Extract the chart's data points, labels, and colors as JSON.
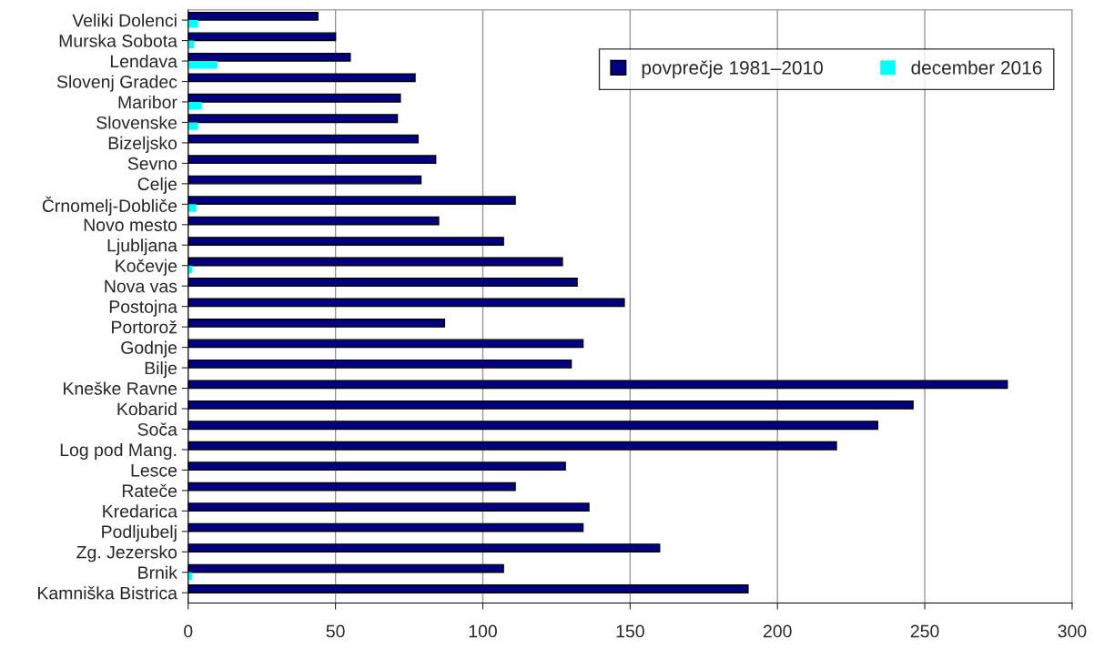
{
  "chart_data": {
    "type": "bar",
    "orientation": "horizontal",
    "categories": [
      "Veliki Dolenci",
      "Murska Sobota",
      "Lendava",
      "Slovenj Gradec",
      "Maribor",
      "Slovenske",
      "Bizeljsko",
      "Sevno",
      "Celje",
      "Črnomelj-Dobliče",
      "Novo mesto",
      "Ljubljana",
      "Kočevje",
      "Nova vas",
      "Postojna",
      "Portorož",
      "Godnje",
      "Bilje",
      "Kneške Ravne",
      "Kobarid",
      "Soča",
      "Log pod Mang.",
      "Lesce",
      "Rateče",
      "Kredarica",
      "Podljubelj",
      "Zg. Jezersko",
      "Brnik",
      "Kamniška Bistrica"
    ],
    "series": [
      {
        "name": "povprečje 1981–2010",
        "color": "#000080",
        "values": [
          44,
          50,
          55,
          77,
          72,
          71,
          78,
          84,
          79,
          111,
          85,
          107,
          127,
          132,
          148,
          87,
          134,
          130,
          278,
          246,
          234,
          220,
          128,
          111,
          136,
          134,
          160,
          107,
          190
        ]
      },
      {
        "name": "december 2016",
        "color": "#00ffff",
        "values": [
          3.4,
          2,
          9.9,
          0,
          4.6,
          3.4,
          0,
          0,
          0,
          2.8,
          0,
          0,
          1.4,
          0,
          0,
          0,
          0,
          0,
          0,
          0,
          0,
          0,
          0,
          0,
          0,
          0,
          0,
          1.4,
          0
        ]
      }
    ],
    "xlim": [
      0,
      300
    ],
    "xticks": [
      0,
      50,
      100,
      150,
      200,
      250,
      300
    ],
    "grid": "x",
    "legend": "top right"
  }
}
